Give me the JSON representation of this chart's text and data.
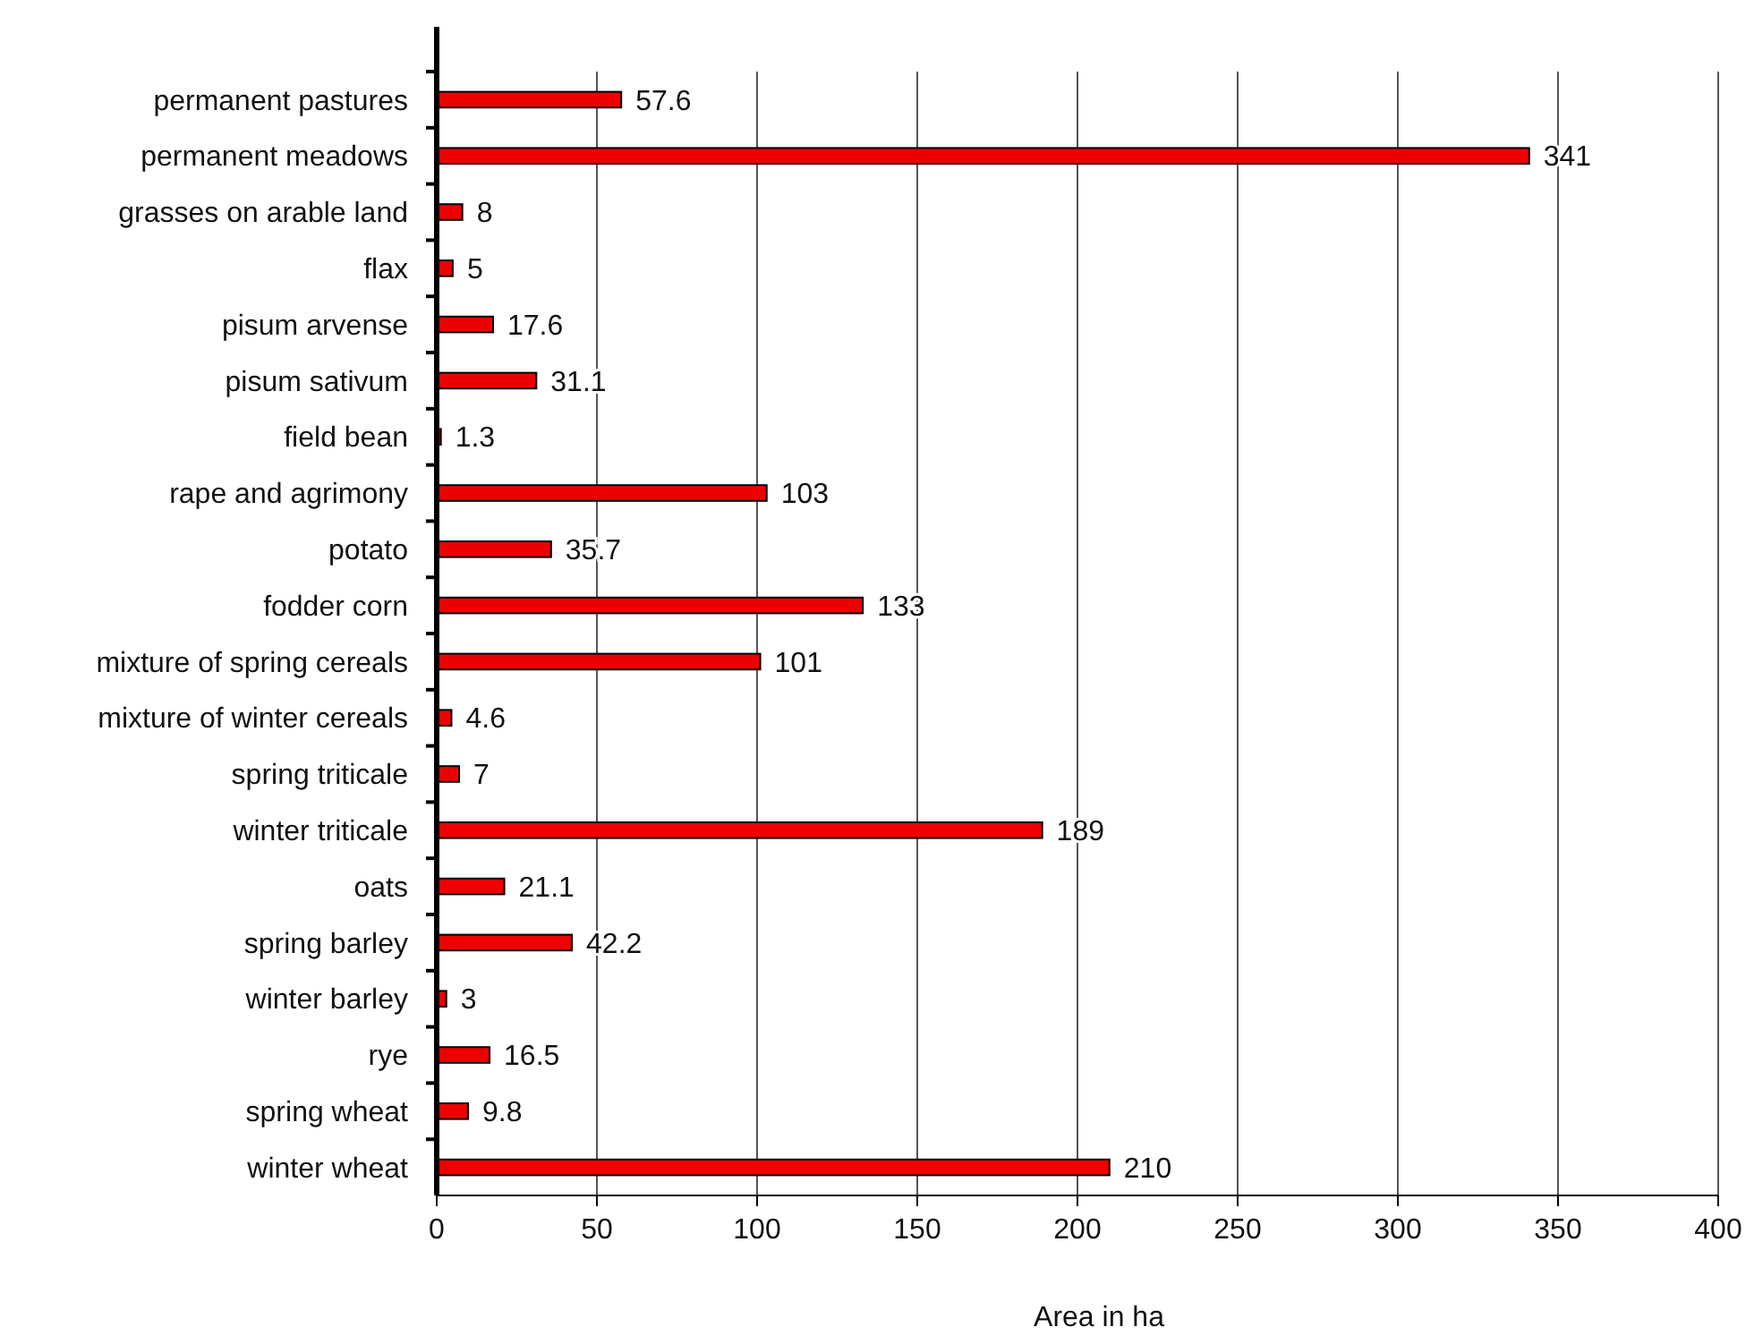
{
  "chart_data": {
    "type": "bar",
    "orientation": "horizontal",
    "xlabel": "Area in ha",
    "categories": [
      "permanent pastures",
      "permanent meadows",
      "grasses on arable land",
      "flax",
      "pisum arvense",
      "pisum sativum",
      "field bean",
      "rape and agrimony",
      "potato",
      "fodder corn",
      "mixture of spring cereals",
      "mixture of winter cereals",
      "spring triticale",
      "winter triticale",
      "oats",
      "spring barley",
      "winter barley",
      "rye",
      "spring wheat",
      "winter wheat"
    ],
    "values": [
      57.6,
      341,
      8,
      5,
      17.6,
      31.1,
      1.3,
      103,
      35.7,
      133,
      101,
      4.6,
      7,
      189,
      21.1,
      42.2,
      3,
      16.5,
      9.8,
      210
    ],
    "color": "#ee0000",
    "xlim": [
      0,
      400
    ],
    "xticks": [
      0,
      50,
      100,
      150,
      200,
      250,
      300,
      350,
      400
    ],
    "grid": "x",
    "data_labels": true
  }
}
